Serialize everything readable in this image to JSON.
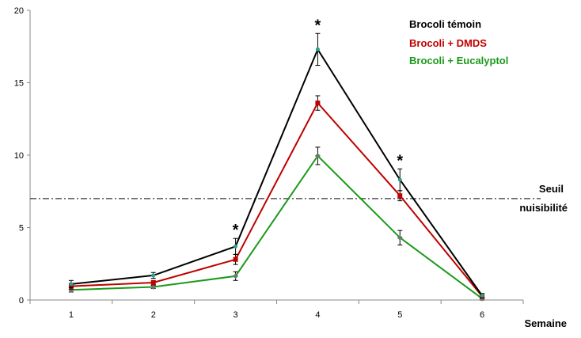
{
  "chart_data": {
    "type": "line",
    "title": "",
    "xlabel": "Semaine",
    "ylabel": "",
    "x": [
      1,
      2,
      3,
      4,
      5,
      6
    ],
    "xlim": [
      0.5,
      6.5
    ],
    "ylim": [
      0,
      20
    ],
    "yticks": [
      0,
      5,
      10,
      15,
      20
    ],
    "grid": false,
    "legend_position": "top-right",
    "series": [
      {
        "name": "Brocoli témoin",
        "color": "#000000",
        "values": [
          1.1,
          1.7,
          3.7,
          17.3,
          8.3,
          0.3
        ],
        "errors": [
          0.25,
          0.2,
          0.55,
          1.1,
          0.75,
          0.15
        ]
      },
      {
        "name": "Brocoli + DMDS",
        "color": "#c00000",
        "values": [
          0.95,
          1.2,
          2.8,
          13.6,
          7.2,
          0.25
        ],
        "errors": [
          0.2,
          0.15,
          0.35,
          0.5,
          0.35,
          0.1
        ]
      },
      {
        "name": "Brocoli + Eucalyptol",
        "color": "#1a9a1a",
        "values": [
          0.7,
          0.9,
          1.65,
          9.95,
          4.3,
          0.1
        ],
        "errors": [
          0.15,
          0.1,
          0.3,
          0.6,
          0.5,
          0.1
        ]
      }
    ],
    "threshold": {
      "value": 7.0,
      "label_line1": "Seuil",
      "label_line2": "nuisibilité"
    },
    "significance": {
      "marker": "*",
      "weeks": [
        3,
        4,
        5
      ]
    }
  }
}
